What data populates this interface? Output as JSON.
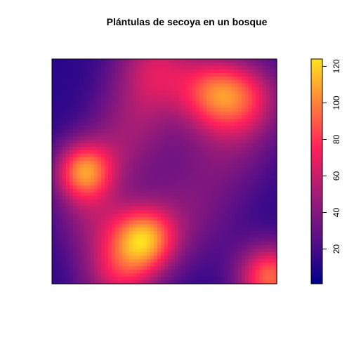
{
  "chart_data": {
    "type": "heatmap",
    "title": "Plántulas de secoya en un bosque",
    "xlabel": "",
    "ylabel": "",
    "xlim": [
      0,
      1
    ],
    "ylim": [
      0,
      1
    ],
    "axes_ticks": false,
    "colorbar": {
      "range": [
        1,
        124
      ],
      "ticks": [
        20,
        40,
        60,
        80,
        100,
        120
      ],
      "tick_labels": [
        "20",
        "40",
        "60",
        "80",
        "100",
        "120"
      ],
      "orientation": "vertical",
      "position": "right",
      "colormap": [
        "#00008b",
        "#5a0f88",
        "#a21d76",
        "#ff1f5b",
        "#ff7f3a",
        "#ffe31e"
      ]
    },
    "density_components": [
      {
        "x": 0.14,
        "y": 0.5,
        "amplitude": 80,
        "spread": 0.09
      },
      {
        "x": 0.41,
        "y": 0.2,
        "amplitude": 82,
        "spread": 0.1
      },
      {
        "x": 0.72,
        "y": 0.85,
        "amplitude": 58,
        "spread": 0.11
      },
      {
        "x": 0.87,
        "y": 0.83,
        "amplitude": 46,
        "spread": 0.12
      },
      {
        "x": 0.3,
        "y": 0.05,
        "amplitude": 52,
        "spread": 0.12
      },
      {
        "x": 0.97,
        "y": 0.03,
        "amplitude": 80,
        "spread": 0.1
      },
      {
        "x": 0.47,
        "y": 0.97,
        "amplitude": 45,
        "spread": 0.13
      },
      {
        "x": 0.18,
        "y": 0.3,
        "amplitude": 30,
        "spread": 0.12
      },
      {
        "x": 0.3,
        "y": 0.6,
        "amplitude": 25,
        "spread": 0.13
      },
      {
        "x": 0.78,
        "y": 0.62,
        "amplitude": 25,
        "spread": 0.15
      },
      {
        "x": 0.6,
        "y": 0.32,
        "amplitude": 24,
        "spread": 0.16
      },
      {
        "x": 0.4,
        "y": 0.78,
        "amplitude": 22,
        "spread": 0.13
      }
    ],
    "baseline": 12
  }
}
